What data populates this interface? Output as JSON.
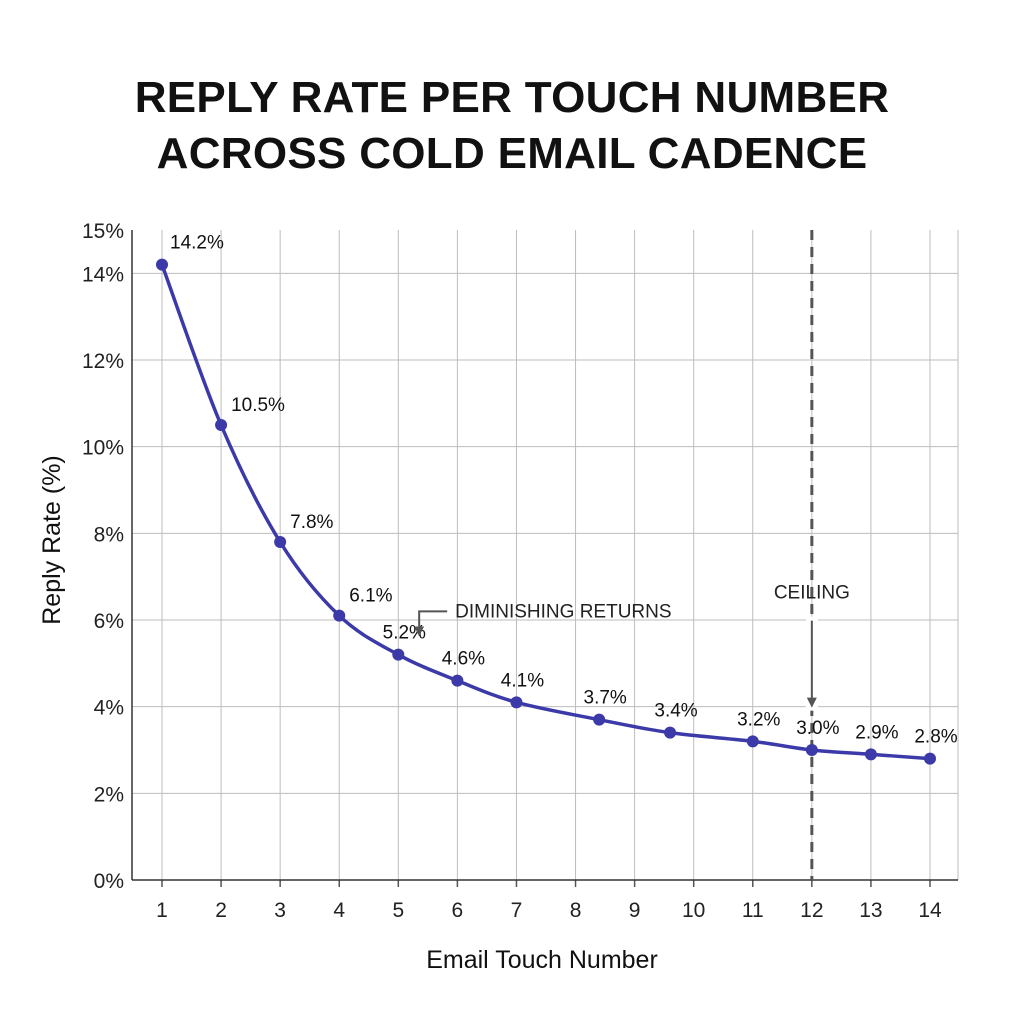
{
  "chart_data": {
    "type": "line",
    "title_lines": [
      "REPLY RATE PER TOUCH NUMBER",
      "ACROSS COLD EMAIL CADENCE"
    ],
    "xlabel": "Email Touch Number",
    "ylabel": "Reply Rate (%)",
    "x": [
      1,
      2,
      3,
      4,
      5,
      6,
      7,
      8,
      9,
      10,
      11,
      12,
      13,
      14
    ],
    "x_tick_labels": [
      "1",
      "2",
      "3",
      "4",
      "5",
      "6",
      "7",
      "8",
      "9",
      "10",
      "11",
      "12",
      "13",
      "14"
    ],
    "y_tick_labels": [
      "0%",
      "2%",
      "4%",
      "6%",
      "8%",
      "10%",
      "12%",
      "14%",
      "15%"
    ],
    "y_ticks": [
      0,
      2,
      4,
      6,
      8,
      10,
      12,
      14,
      15
    ],
    "ylim": [
      0,
      15
    ],
    "xlim": [
      1,
      14
    ],
    "grid": true,
    "series": [
      {
        "values": [
          14.2,
          10.5,
          7.8,
          6.1,
          5.2,
          4.6,
          4.1,
          3.7,
          3.4,
          3.2,
          3.0,
          2.9,
          2.8
        ],
        "x": [
          1,
          2,
          3,
          4,
          5,
          6,
          7,
          8.4,
          9.6,
          11,
          12,
          13,
          14
        ],
        "data_labels": [
          "14.2%",
          "10.5%",
          "7.8%",
          "6.1%",
          "5.2%",
          "4.6%",
          "4.1%",
          "3.7%",
          "3.4%",
          "3.2%",
          "3.0%",
          "2.9%",
          "2.8%"
        ],
        "color": "#3b3aa8"
      }
    ],
    "annotations": [
      {
        "text": "DIMINISHING RETURNS",
        "x": 5.15,
        "y": 6.2
      },
      {
        "text": "CEILING",
        "x": 12,
        "y": 6.4
      }
    ],
    "reference_line": {
      "x": 12,
      "style": "dashed",
      "color": "#555555"
    }
  }
}
